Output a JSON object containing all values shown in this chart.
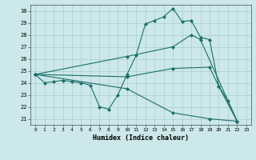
{
  "xlabel": "Humidex (Indice chaleur)",
  "bg_color": "#cce8ea",
  "grid_color": "#aacccc",
  "line_color": "#1a6e6a",
  "xlim": [
    -0.5,
    23.5
  ],
  "ylim": [
    20.5,
    30.5
  ],
  "xticks": [
    0,
    1,
    2,
    3,
    4,
    5,
    6,
    7,
    8,
    9,
    10,
    11,
    12,
    13,
    14,
    15,
    16,
    17,
    18,
    19,
    20,
    21,
    22,
    23
  ],
  "yticks": [
    21,
    22,
    23,
    24,
    25,
    26,
    27,
    28,
    29,
    30
  ],
  "series": [
    [
      [
        0,
        24.7
      ],
      [
        1,
        24.0
      ],
      [
        2,
        24.1
      ],
      [
        3,
        24.2
      ],
      [
        4,
        24.1
      ],
      [
        5,
        24.0
      ],
      [
        6,
        23.8
      ],
      [
        7,
        22.0
      ],
      [
        8,
        21.8
      ],
      [
        9,
        23.0
      ],
      [
        10,
        24.7
      ],
      [
        11,
        26.3
      ],
      [
        12,
        28.9
      ],
      [
        13,
        29.2
      ],
      [
        14,
        29.5
      ],
      [
        15,
        30.2
      ],
      [
        16,
        29.1
      ],
      [
        17,
        29.2
      ],
      [
        18,
        27.8
      ],
      [
        19,
        27.6
      ],
      [
        20,
        23.7
      ],
      [
        21,
        22.5
      ],
      [
        22,
        20.8
      ]
    ],
    [
      [
        0,
        24.7
      ],
      [
        10,
        26.2
      ],
      [
        15,
        27.0
      ],
      [
        17,
        28.0
      ],
      [
        18,
        27.6
      ],
      [
        22,
        20.8
      ]
    ],
    [
      [
        0,
        24.7
      ],
      [
        10,
        24.5
      ],
      [
        15,
        25.2
      ],
      [
        19,
        25.3
      ],
      [
        20,
        23.7
      ],
      [
        22,
        20.8
      ]
    ],
    [
      [
        0,
        24.7
      ],
      [
        10,
        23.5
      ],
      [
        15,
        21.5
      ],
      [
        19,
        21.0
      ],
      [
        22,
        20.8
      ]
    ]
  ]
}
